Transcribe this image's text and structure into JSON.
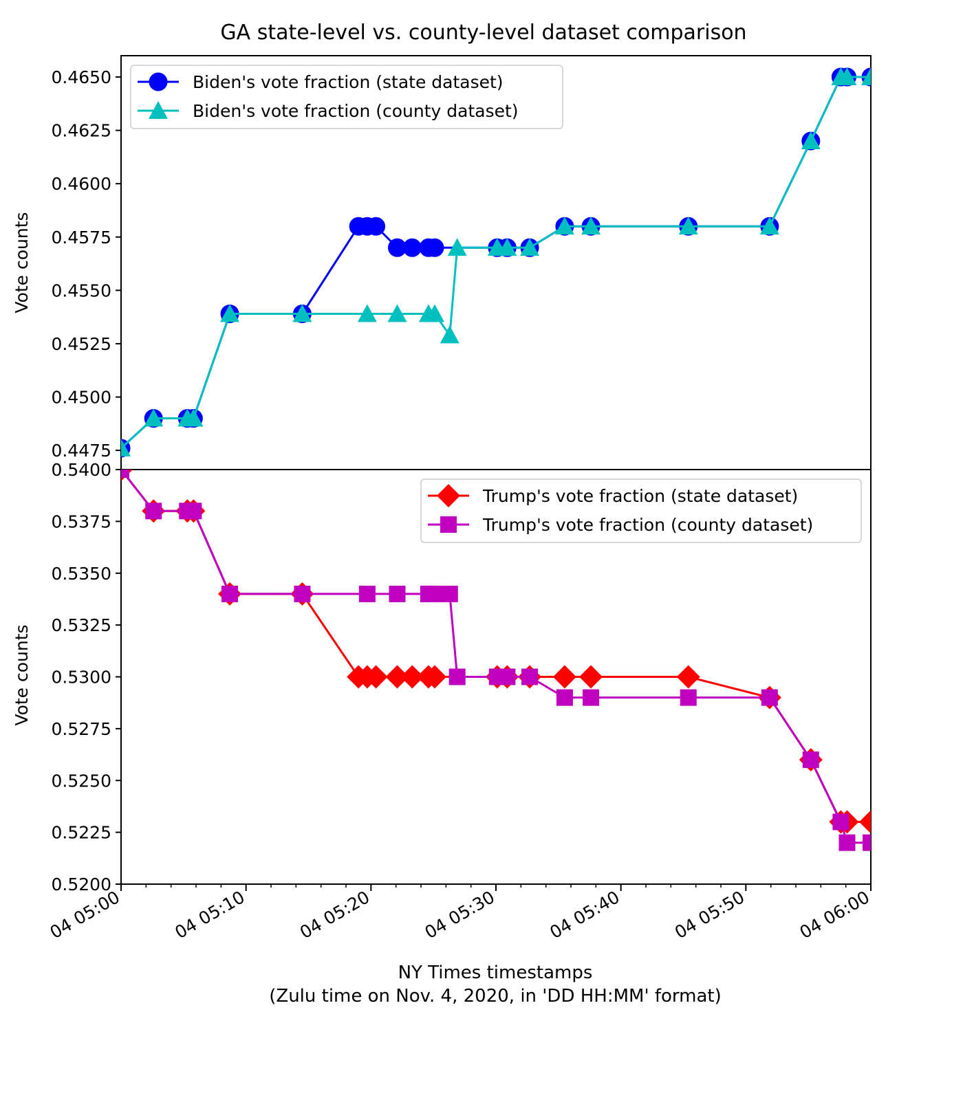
{
  "figure": {
    "title": "GA state-level vs. county-level dataset comparison",
    "xlabel_line1": "NY Times timestamps",
    "xlabel_line2": "(Zulu time on Nov. 4, 2020, in 'DD HH:MM' format)"
  },
  "chart_data": [
    {
      "type": "line",
      "panel": "top",
      "title": "GA state-level vs. county-level dataset comparison",
      "ylabel": "Vote counts",
      "xlabel": "",
      "ylim": [
        0.4466,
        0.466
      ],
      "y_ticks": [
        "0.4475",
        "0.4500",
        "0.4525",
        "0.4550",
        "0.4575",
        "0.4600",
        "0.4625",
        "0.4650"
      ],
      "y_tick_values": [
        0.4475,
        0.45,
        0.4525,
        0.455,
        0.4575,
        0.46,
        0.4625,
        0.465
      ],
      "legend_position": "top-left",
      "grid": false,
      "series": [
        {
          "name": "Biden's vote fraction (state dataset)",
          "color": "#0000ff",
          "marker": "circle",
          "x": [
            "04 05:00",
            "04 05:02.6",
            "04 05:05.3",
            "04 05:05.8",
            "04 05:08.7",
            "04 05:14.5",
            "04 05:19.0",
            "04 05:19.7",
            "04 05:20.4",
            "04 05:22.1",
            "04 05:23.3",
            "04 05:24.6",
            "04 05:25.1",
            "04 05:30.1",
            "04 05:30.9",
            "04 05:32.7",
            "04 05:35.5",
            "04 05:37.6",
            "04 05:45.4",
            "04 05:51.9",
            "04 05:55.2",
            "04 05:57.6",
            "04 05:58.1",
            "04 06:00"
          ],
          "y": [
            0.4476,
            0.449,
            0.449,
            0.449,
            0.4539,
            0.4539,
            0.458,
            0.458,
            0.458,
            0.457,
            0.457,
            0.457,
            0.457,
            0.457,
            0.457,
            0.457,
            0.458,
            0.458,
            0.458,
            0.458,
            0.462,
            0.465,
            0.465,
            0.465
          ]
        },
        {
          "name": "Biden's vote fraction (county dataset)",
          "color": "#00bfbf",
          "marker": "triangle",
          "x": [
            "04 05:00",
            "04 05:02.6",
            "04 05:05.3",
            "04 05:05.8",
            "04 05:08.7",
            "04 05:14.5",
            "04 05:19.7",
            "04 05:22.1",
            "04 05:24.6",
            "04 05:25.1",
            "04 05:26.3",
            "04 05:26.9",
            "04 05:30.1",
            "04 05:30.9",
            "04 05:32.7",
            "04 05:35.5",
            "04 05:37.6",
            "04 05:45.4",
            "04 05:51.9",
            "04 05:55.2",
            "04 05:57.6",
            "04 05:58.1",
            "04 06:00"
          ],
          "y": [
            0.4476,
            0.449,
            0.449,
            0.449,
            0.4539,
            0.4539,
            0.4539,
            0.4539,
            0.4539,
            0.4539,
            0.4529,
            0.457,
            0.457,
            0.457,
            0.457,
            0.458,
            0.458,
            0.458,
            0.458,
            0.462,
            0.465,
            0.465,
            0.465
          ]
        }
      ]
    },
    {
      "type": "line",
      "panel": "bottom",
      "ylabel": "Vote counts",
      "xlabel": "NY Times timestamps\n(Zulu time on Nov. 4, 2020, in 'DD HH:MM' format)",
      "ylim": [
        0.52,
        0.54
      ],
      "y_ticks": [
        "0.5200",
        "0.5225",
        "0.5250",
        "0.5275",
        "0.5300",
        "0.5325",
        "0.5350",
        "0.5375",
        "0.5400"
      ],
      "y_tick_values": [
        0.52,
        0.5225,
        0.525,
        0.5275,
        0.53,
        0.5325,
        0.535,
        0.5375,
        0.54
      ],
      "x_ticks": [
        "04 05:00",
        "04 05:10",
        "04 05:20",
        "04 05:30",
        "04 05:40",
        "04 05:50",
        "04 06:00"
      ],
      "legend_position": "top-right",
      "grid": false,
      "series": [
        {
          "name": "Trump's vote fraction (state dataset)",
          "color": "#ff0000",
          "marker": "diamond",
          "x": [
            "04 05:00",
            "04 05:02.6",
            "04 05:05.3",
            "04 05:05.8",
            "04 05:08.7",
            "04 05:14.5",
            "04 05:19.0",
            "04 05:19.7",
            "04 05:20.4",
            "04 05:22.1",
            "04 05:23.3",
            "04 05:24.6",
            "04 05:25.1",
            "04 05:30.1",
            "04 05:30.9",
            "04 05:32.7",
            "04 05:35.5",
            "04 05:37.6",
            "04 05:45.4",
            "04 05:51.9",
            "04 05:55.2",
            "04 05:57.6",
            "04 05:58.1",
            "04 06:00"
          ],
          "y": [
            0.54,
            0.538,
            0.538,
            0.538,
            0.534,
            0.534,
            0.53,
            0.53,
            0.53,
            0.53,
            0.53,
            0.53,
            0.53,
            0.53,
            0.53,
            0.53,
            0.53,
            0.53,
            0.53,
            0.529,
            0.526,
            0.523,
            0.523,
            0.523
          ]
        },
        {
          "name": "Trump's vote fraction (county dataset)",
          "color": "#bf00bf",
          "marker": "square",
          "x": [
            "04 05:00",
            "04 05:02.6",
            "04 05:05.3",
            "04 05:05.8",
            "04 05:08.7",
            "04 05:14.5",
            "04 05:19.7",
            "04 05:22.1",
            "04 05:24.6",
            "04 05:25.1",
            "04 05:26.3",
            "04 05:26.9",
            "04 05:30.1",
            "04 05:30.9",
            "04 05:32.7",
            "04 05:35.5",
            "04 05:37.6",
            "04 05:45.4",
            "04 05:51.9",
            "04 05:55.2",
            "04 05:57.6",
            "04 05:58.1",
            "04 06:00"
          ],
          "y": [
            0.54,
            0.538,
            0.538,
            0.538,
            0.534,
            0.534,
            0.534,
            0.534,
            0.534,
            0.534,
            0.534,
            0.53,
            0.53,
            0.53,
            0.53,
            0.529,
            0.529,
            0.529,
            0.529,
            0.526,
            0.523,
            0.522,
            0.522
          ]
        }
      ]
    }
  ]
}
